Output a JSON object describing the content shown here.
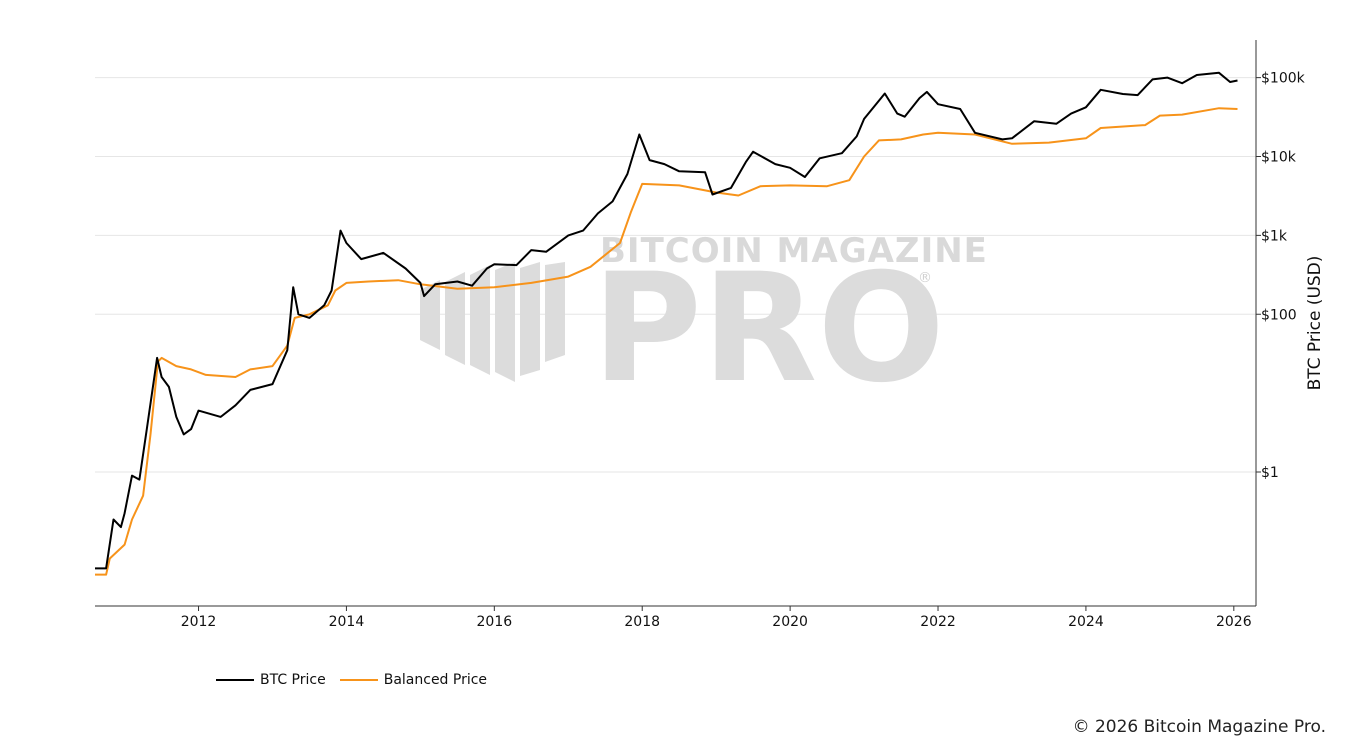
{
  "chart_data": {
    "type": "line",
    "y_scale": "log",
    "ylabel": "BTC Price (USD)",
    "ylim": [
      0.02,
      300000
    ],
    "xlim": [
      2010.6,
      2026.3
    ],
    "x_ticks": [
      {
        "value": 2012,
        "label": "2012"
      },
      {
        "value": 2014,
        "label": "2014"
      },
      {
        "value": 2016,
        "label": "2016"
      },
      {
        "value": 2018,
        "label": "2018"
      },
      {
        "value": 2020,
        "label": "2020"
      },
      {
        "value": 2022,
        "label": "2022"
      },
      {
        "value": 2024,
        "label": "2024"
      },
      {
        "value": 2026,
        "label": "2026"
      }
    ],
    "y_ticks": [
      {
        "value": 1,
        "label": "$1"
      },
      {
        "value": 100,
        "label": "$100"
      },
      {
        "value": 1000,
        "label": "$1k"
      },
      {
        "value": 10000,
        "label": "$10k"
      },
      {
        "value": 100000,
        "label": "$100k"
      }
    ],
    "series": [
      {
        "name": "BTC Price",
        "color": "#000000",
        "points": [
          [
            2010.6,
            0.06
          ],
          [
            2010.75,
            0.06
          ],
          [
            2010.85,
            0.25
          ],
          [
            2010.95,
            0.2
          ],
          [
            2011.0,
            0.3
          ],
          [
            2011.1,
            0.9
          ],
          [
            2011.2,
            0.8
          ],
          [
            2011.3,
            3.5
          ],
          [
            2011.44,
            28
          ],
          [
            2011.5,
            16
          ],
          [
            2011.6,
            12
          ],
          [
            2011.7,
            5
          ],
          [
            2011.8,
            3.0
          ],
          [
            2011.9,
            3.5
          ],
          [
            2012.0,
            6
          ],
          [
            2012.3,
            5
          ],
          [
            2012.5,
            7
          ],
          [
            2012.7,
            11
          ],
          [
            2013.0,
            13
          ],
          [
            2013.2,
            35
          ],
          [
            2013.28,
            220
          ],
          [
            2013.35,
            100
          ],
          [
            2013.5,
            90
          ],
          [
            2013.7,
            130
          ],
          [
            2013.8,
            200
          ],
          [
            2013.92,
            1150
          ],
          [
            2014.0,
            800
          ],
          [
            2014.2,
            500
          ],
          [
            2014.5,
            600
          ],
          [
            2014.8,
            380
          ],
          [
            2015.0,
            250
          ],
          [
            2015.05,
            170
          ],
          [
            2015.2,
            240
          ],
          [
            2015.5,
            260
          ],
          [
            2015.7,
            230
          ],
          [
            2015.9,
            380
          ],
          [
            2016.0,
            430
          ],
          [
            2016.3,
            420
          ],
          [
            2016.5,
            650
          ],
          [
            2016.7,
            620
          ],
          [
            2017.0,
            1000
          ],
          [
            2017.2,
            1150
          ],
          [
            2017.4,
            1900
          ],
          [
            2017.6,
            2700
          ],
          [
            2017.8,
            6000
          ],
          [
            2017.96,
            19000
          ],
          [
            2018.1,
            9000
          ],
          [
            2018.3,
            8000
          ],
          [
            2018.5,
            6500
          ],
          [
            2018.85,
            6300
          ],
          [
            2018.95,
            3300
          ],
          [
            2019.2,
            4000
          ],
          [
            2019.4,
            8500
          ],
          [
            2019.5,
            11500
          ],
          [
            2019.8,
            8000
          ],
          [
            2020.0,
            7200
          ],
          [
            2020.2,
            5500
          ],
          [
            2020.4,
            9500
          ],
          [
            2020.7,
            11000
          ],
          [
            2020.9,
            18000
          ],
          [
            2021.0,
            30000
          ],
          [
            2021.28,
            63000
          ],
          [
            2021.45,
            35000
          ],
          [
            2021.55,
            32000
          ],
          [
            2021.75,
            55000
          ],
          [
            2021.85,
            66000
          ],
          [
            2022.0,
            46000
          ],
          [
            2022.3,
            40000
          ],
          [
            2022.5,
            20000
          ],
          [
            2022.87,
            16500
          ],
          [
            2023.0,
            17000
          ],
          [
            2023.3,
            28000
          ],
          [
            2023.6,
            26000
          ],
          [
            2023.8,
            35000
          ],
          [
            2024.0,
            42000
          ],
          [
            2024.2,
            70000
          ],
          [
            2024.5,
            62000
          ],
          [
            2024.7,
            60000
          ],
          [
            2024.9,
            95000
          ],
          [
            2025.1,
            100000
          ],
          [
            2025.3,
            85000
          ],
          [
            2025.5,
            108000
          ],
          [
            2025.8,
            115000
          ],
          [
            2025.95,
            88000
          ],
          [
            2026.05,
            92000
          ]
        ]
      },
      {
        "name": "Balanced Price",
        "color": "#f7931a",
        "points": [
          [
            2010.6,
            0.05
          ],
          [
            2010.75,
            0.05
          ],
          [
            2010.8,
            0.08
          ],
          [
            2011.0,
            0.12
          ],
          [
            2011.1,
            0.25
          ],
          [
            2011.25,
            0.5
          ],
          [
            2011.35,
            3
          ],
          [
            2011.45,
            25
          ],
          [
            2011.5,
            28
          ],
          [
            2011.7,
            22
          ],
          [
            2011.9,
            20
          ],
          [
            2012.1,
            17
          ],
          [
            2012.5,
            16
          ],
          [
            2012.7,
            20
          ],
          [
            2013.0,
            22
          ],
          [
            2013.2,
            40
          ],
          [
            2013.3,
            90
          ],
          [
            2013.5,
            100
          ],
          [
            2013.75,
            130
          ],
          [
            2013.85,
            200
          ],
          [
            2014.0,
            250
          ],
          [
            2014.3,
            260
          ],
          [
            2014.7,
            270
          ],
          [
            2015.0,
            240
          ],
          [
            2015.5,
            210
          ],
          [
            2016.0,
            220
          ],
          [
            2016.5,
            250
          ],
          [
            2017.0,
            300
          ],
          [
            2017.3,
            400
          ],
          [
            2017.7,
            800
          ],
          [
            2017.85,
            2000
          ],
          [
            2018.0,
            4500
          ],
          [
            2018.5,
            4300
          ],
          [
            2019.0,
            3500
          ],
          [
            2019.3,
            3200
          ],
          [
            2019.6,
            4200
          ],
          [
            2020.0,
            4300
          ],
          [
            2020.5,
            4200
          ],
          [
            2020.8,
            5000
          ],
          [
            2021.0,
            10000
          ],
          [
            2021.2,
            16000
          ],
          [
            2021.5,
            16500
          ],
          [
            2021.8,
            19000
          ],
          [
            2022.0,
            20000
          ],
          [
            2022.5,
            19000
          ],
          [
            2023.0,
            14500
          ],
          [
            2023.5,
            15000
          ],
          [
            2024.0,
            17000
          ],
          [
            2024.2,
            23000
          ],
          [
            2024.8,
            25000
          ],
          [
            2025.0,
            33000
          ],
          [
            2025.3,
            34000
          ],
          [
            2025.8,
            41000
          ],
          [
            2026.05,
            40000
          ]
        ]
      }
    ],
    "legend": [
      "BTC Price",
      "Balanced Price"
    ],
    "legend_position": "bottom-left"
  },
  "watermark": {
    "line1": "BITCOIN MAGAZINE",
    "line2": "PRO",
    "mark": "®"
  },
  "copyright": "© 2026 Bitcoin Magazine Pro."
}
